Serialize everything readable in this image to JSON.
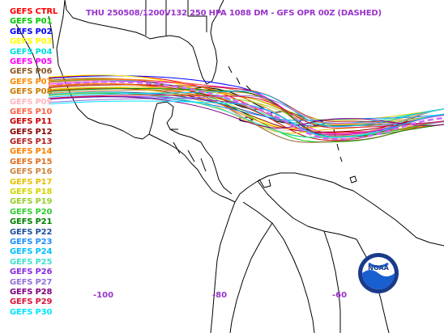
{
  "title": "THU 250508/1200V132  250 HPA 1088 DM - GFS OPR 00Z (DASHED)",
  "title_color": "#9933cc",
  "map": {
    "land_color": "#000000",
    "background": "#ffffff",
    "lon_ticks": [
      {
        "label": "-100",
        "lon": -100
      },
      {
        "label": "-80",
        "lon": -80
      },
      {
        "label": "-60",
        "lon": -60
      }
    ],
    "tick_color": "#9933cc"
  },
  "logo": {
    "text": "NOAA",
    "icon": "noaa-logo-icon"
  },
  "members": [
    {
      "label": "GEFS CTRL",
      "color": "#ff0000"
    },
    {
      "label": "GEFS P01",
      "color": "#00cc00"
    },
    {
      "label": "GEFS P02",
      "color": "#0000ff"
    },
    {
      "label": "GEFS P03",
      "color": "#ffff00"
    },
    {
      "label": "GEFS P04",
      "color": "#00e0e0"
    },
    {
      "label": "GEFS P05",
      "color": "#ff00ff"
    },
    {
      "label": "GEFS P06",
      "color": "#8b5a2b"
    },
    {
      "label": "GEFS P07",
      "color": "#ff8c00"
    },
    {
      "label": "GEFS P08",
      "color": "#cc7a00"
    },
    {
      "label": "GEFS P09",
      "color": "#ffb6c1"
    },
    {
      "label": "GEFS P10",
      "color": "#ff6347"
    },
    {
      "label": "GEFS P11",
      "color": "#cc0000"
    },
    {
      "label": "GEFS P12",
      "color": "#8b0000"
    },
    {
      "label": "GEFS P13",
      "color": "#b22222"
    },
    {
      "label": "GEFS P14",
      "color": "#ff7f00"
    },
    {
      "label": "GEFS P15",
      "color": "#e07020"
    },
    {
      "label": "GEFS P16",
      "color": "#cd853f"
    },
    {
      "label": "GEFS P17",
      "color": "#e6c000"
    },
    {
      "label": "GEFS P18",
      "color": "#d4d400"
    },
    {
      "label": "GEFS P19",
      "color": "#9acd32"
    },
    {
      "label": "GEFS P20",
      "color": "#32cd32"
    },
    {
      "label": "GEFS P21",
      "color": "#008000"
    },
    {
      "label": "GEFS P22",
      "color": "#1f4e9c"
    },
    {
      "label": "GEFS P23",
      "color": "#1e90ff"
    },
    {
      "label": "GEFS P24",
      "color": "#00bfff"
    },
    {
      "label": "GEFS P25",
      "color": "#40e0d0"
    },
    {
      "label": "GEFS P26",
      "color": "#8a2be2"
    },
    {
      "label": "GEFS P27",
      "color": "#9370db"
    },
    {
      "label": "GEFS P28",
      "color": "#800080"
    },
    {
      "label": "GEFS P29",
      "color": "#dc143c"
    },
    {
      "label": "GEFS P30",
      "color": "#00e5ff"
    }
  ],
  "opr_color": "#cc66ff"
}
